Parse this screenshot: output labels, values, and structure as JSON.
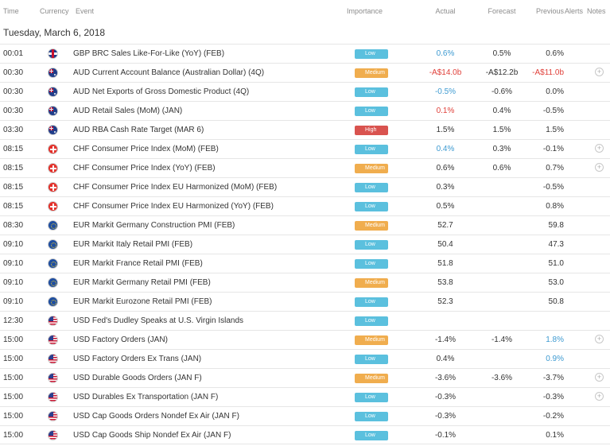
{
  "headers": {
    "time": "Time",
    "currency": "Currency",
    "event": "Event",
    "importance": "Importance",
    "actual": "Actual",
    "forecast": "Forecast",
    "previous": "Previous",
    "alerts": "Alerts",
    "notes": "Notes"
  },
  "date": "Tuesday, March 6, 2018",
  "rows": [
    {
      "time": "00:01",
      "flag": "uk-flag-icon",
      "event": "GBP BRC Sales Like-For-Like (YoY) (FEB)",
      "importance": "Low",
      "actual": "0.6%",
      "actual_color": "pos",
      "forecast": "0.5%",
      "previous": "0.6%",
      "previous_color": "neu",
      "note": false
    },
    {
      "time": "00:30",
      "flag": "australia-flag-icon",
      "event": "AUD Current Account Balance (Australian Dollar) (4Q)",
      "importance": "Medium",
      "actual": "-A$14.0b",
      "actual_color": "neg",
      "forecast": "-A$12.2b",
      "previous": "-A$11.0b",
      "previous_color": "neg",
      "note": true
    },
    {
      "time": "00:30",
      "flag": "australia-flag-icon",
      "event": "AUD Net Exports of Gross Domestic Product (4Q)",
      "importance": "Low",
      "actual": "-0.5%",
      "actual_color": "pos",
      "forecast": "-0.6%",
      "previous": "0.0%",
      "previous_color": "neu",
      "note": false
    },
    {
      "time": "00:30",
      "flag": "australia-flag-icon",
      "event": "AUD Retail Sales (MoM) (JAN)",
      "importance": "Low",
      "actual": "0.1%",
      "actual_color": "neg",
      "forecast": "0.4%",
      "previous": "-0.5%",
      "previous_color": "neu",
      "note": false
    },
    {
      "time": "03:30",
      "flag": "australia-flag-icon",
      "event": "AUD RBA Cash Rate Target (MAR 6)",
      "importance": "High",
      "actual": "1.5%",
      "actual_color": "neu",
      "forecast": "1.5%",
      "previous": "1.5%",
      "previous_color": "neu",
      "note": false
    },
    {
      "time": "08:15",
      "flag": "switzerland-flag-icon",
      "event": "CHF Consumer Price Index (MoM) (FEB)",
      "importance": "Low",
      "actual": "0.4%",
      "actual_color": "pos",
      "forecast": "0.3%",
      "previous": "-0.1%",
      "previous_color": "neu",
      "note": true
    },
    {
      "time": "08:15",
      "flag": "switzerland-flag-icon",
      "event": "CHF Consumer Price Index (YoY) (FEB)",
      "importance": "Medium",
      "actual": "0.6%",
      "actual_color": "neu",
      "forecast": "0.6%",
      "previous": "0.7%",
      "previous_color": "neu",
      "note": true
    },
    {
      "time": "08:15",
      "flag": "switzerland-flag-icon",
      "event": "CHF Consumer Price Index EU Harmonized (MoM) (FEB)",
      "importance": "Low",
      "actual": "0.3%",
      "actual_color": "neu",
      "forecast": "",
      "previous": "-0.5%",
      "previous_color": "neu",
      "note": false
    },
    {
      "time": "08:15",
      "flag": "switzerland-flag-icon",
      "event": "CHF Consumer Price Index EU Harmonized (YoY) (FEB)",
      "importance": "Low",
      "actual": "0.5%",
      "actual_color": "neu",
      "forecast": "",
      "previous": "0.8%",
      "previous_color": "neu",
      "note": false
    },
    {
      "time": "08:30",
      "flag": "eu-flag-icon",
      "event": "EUR Markit Germany Construction PMI (FEB)",
      "importance": "Medium",
      "actual": "52.7",
      "actual_color": "neu",
      "forecast": "",
      "previous": "59.8",
      "previous_color": "neu",
      "note": false
    },
    {
      "time": "09:10",
      "flag": "eu-flag-icon",
      "event": "EUR Markit Italy Retail PMI (FEB)",
      "importance": "Low",
      "actual": "50.4",
      "actual_color": "neu",
      "forecast": "",
      "previous": "47.3",
      "previous_color": "neu",
      "note": false
    },
    {
      "time": "09:10",
      "flag": "eu-flag-icon",
      "event": "EUR Markit France Retail PMI (FEB)",
      "importance": "Low",
      "actual": "51.8",
      "actual_color": "neu",
      "forecast": "",
      "previous": "51.0",
      "previous_color": "neu",
      "note": false
    },
    {
      "time": "09:10",
      "flag": "eu-flag-icon",
      "event": "EUR Markit Germany Retail PMI (FEB)",
      "importance": "Medium",
      "actual": "53.8",
      "actual_color": "neu",
      "forecast": "",
      "previous": "53.0",
      "previous_color": "neu",
      "note": false
    },
    {
      "time": "09:10",
      "flag": "eu-flag-icon",
      "event": "EUR Markit Eurozone Retail PMI (FEB)",
      "importance": "Low",
      "actual": "52.3",
      "actual_color": "neu",
      "forecast": "",
      "previous": "50.8",
      "previous_color": "neu",
      "note": false
    },
    {
      "time": "12:30",
      "flag": "usa-flag-icon",
      "event": "USD Fed's Dudley Speaks at U.S. Virgin Islands",
      "importance": "Low",
      "actual": "",
      "actual_color": "neu",
      "forecast": "",
      "previous": "",
      "previous_color": "neu",
      "note": false
    },
    {
      "time": "15:00",
      "flag": "usa-flag-icon",
      "event": "USD Factory Orders (JAN)",
      "importance": "Medium",
      "actual": "-1.4%",
      "actual_color": "neu",
      "forecast": "-1.4%",
      "previous": "1.8%",
      "previous_color": "pos",
      "note": true
    },
    {
      "time": "15:00",
      "flag": "usa-flag-icon",
      "event": "USD Factory Orders Ex Trans (JAN)",
      "importance": "Low",
      "actual": "0.4%",
      "actual_color": "neu",
      "forecast": "",
      "previous": "0.9%",
      "previous_color": "pos",
      "note": false
    },
    {
      "time": "15:00",
      "flag": "usa-flag-icon",
      "event": "USD Durable Goods Orders (JAN F)",
      "importance": "Medium",
      "actual": "-3.6%",
      "actual_color": "neu",
      "forecast": "-3.6%",
      "previous": "-3.7%",
      "previous_color": "neu",
      "note": true
    },
    {
      "time": "15:00",
      "flag": "usa-flag-icon",
      "event": "USD Durables Ex Transportation (JAN F)",
      "importance": "Low",
      "actual": "-0.3%",
      "actual_color": "neu",
      "forecast": "",
      "previous": "-0.3%",
      "previous_color": "neu",
      "note": true
    },
    {
      "time": "15:00",
      "flag": "usa-flag-icon",
      "event": "USD Cap Goods Orders Nondef Ex Air (JAN F)",
      "importance": "Low",
      "actual": "-0.3%",
      "actual_color": "neu",
      "forecast": "",
      "previous": "-0.2%",
      "previous_color": "neu",
      "note": false
    },
    {
      "time": "15:00",
      "flag": "usa-flag-icon",
      "event": "USD Cap Goods Ship Nondef Ex Air (JAN F)",
      "importance": "Low",
      "actual": "-0.1%",
      "actual_color": "neu",
      "forecast": "",
      "previous": "0.1%",
      "previous_color": "neu",
      "note": false
    }
  ],
  "colors": {
    "low": "#5bc0de",
    "medium": "#f0ad4e",
    "high": "#d9534f",
    "better": "#3d9ad1",
    "worse": "#e0403a"
  }
}
